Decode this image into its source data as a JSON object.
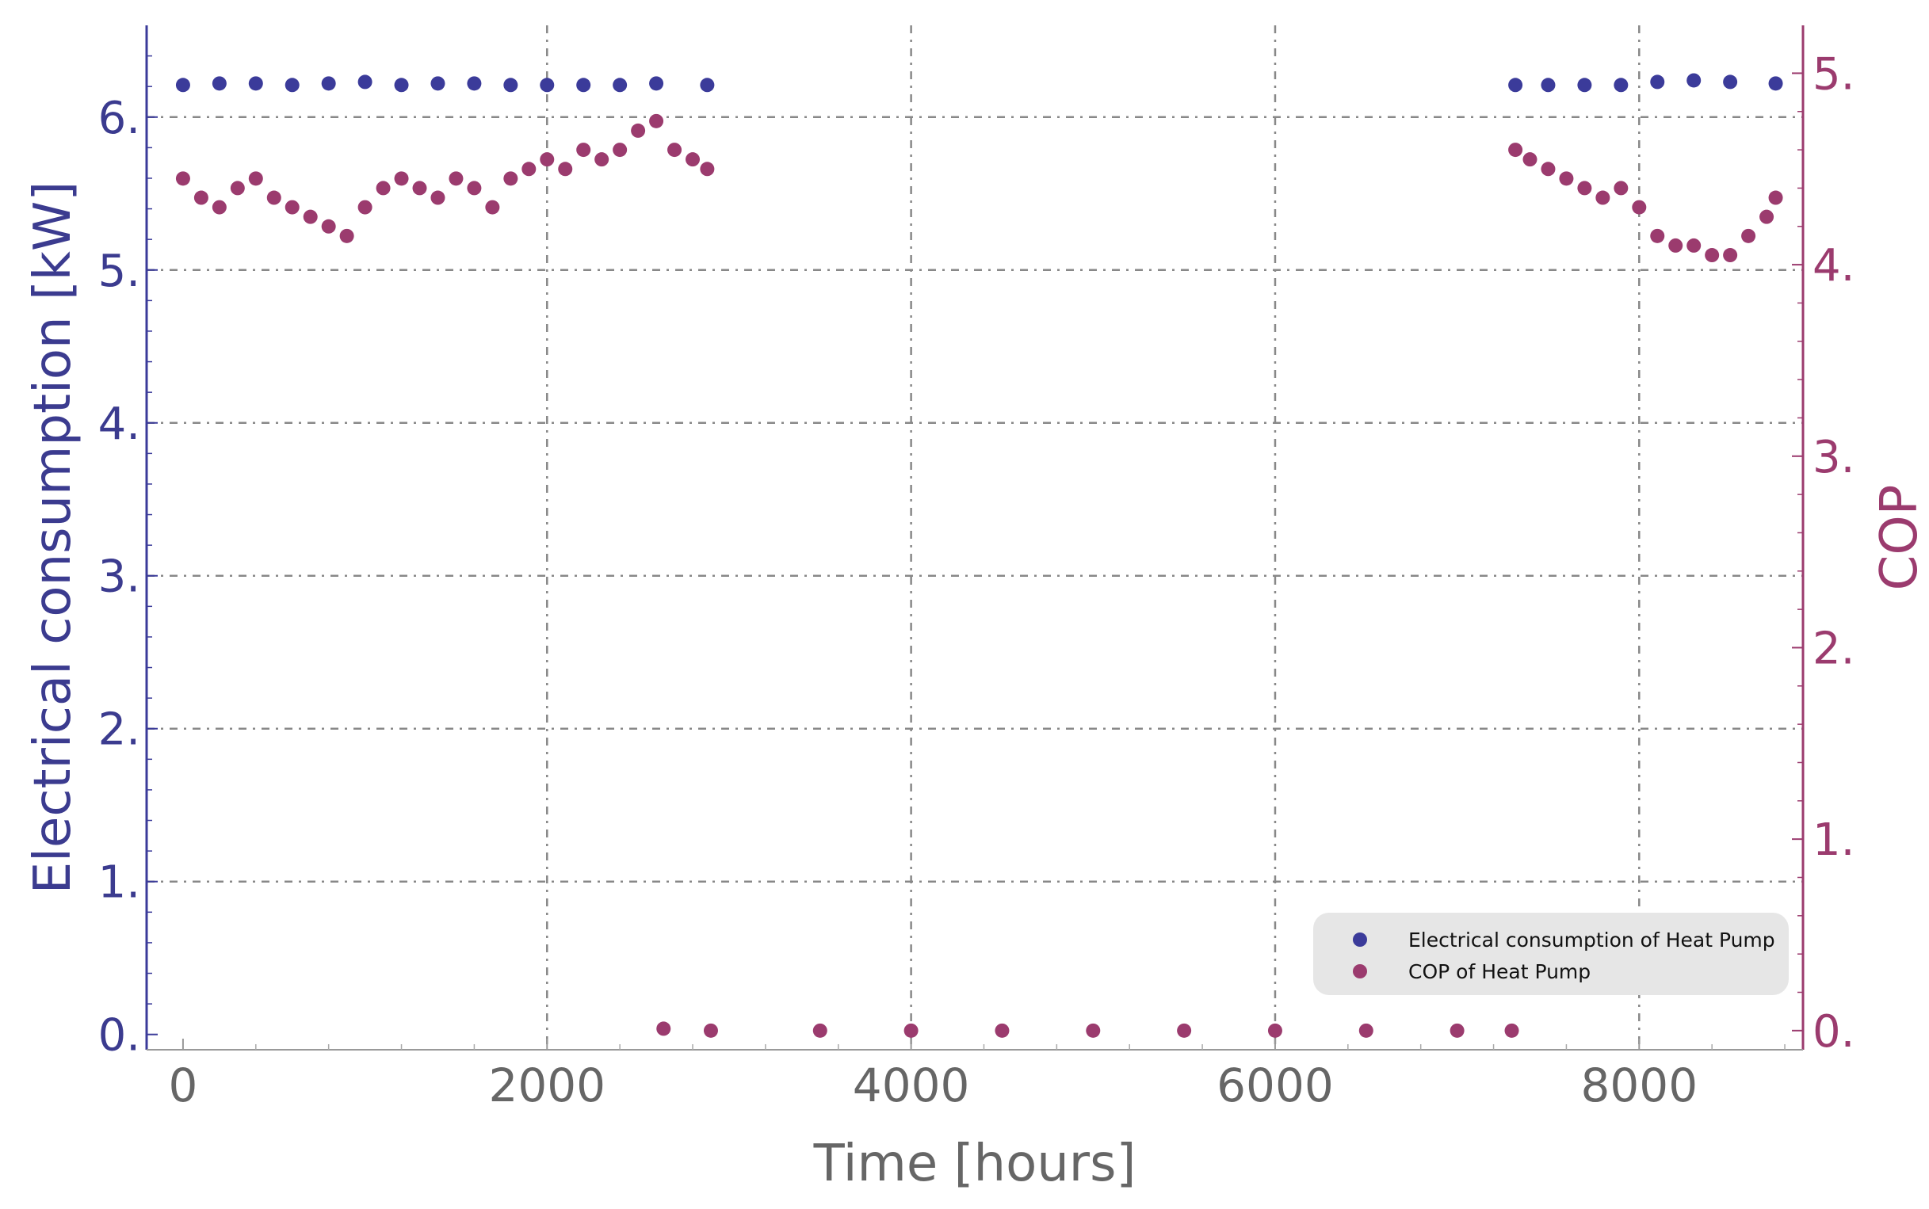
{
  "chart_data": {
    "type": "scatter",
    "title": "",
    "xlabel": "Time [hours]",
    "ylabel_left": "Electrical consumption [kW]",
    "ylabel_right": "COP",
    "xlim": [
      -200,
      8900
    ],
    "ylim_left": [
      -0.1,
      6.6
    ],
    "ylim_right": [
      -0.1,
      5.25
    ],
    "x_ticks": [
      "0",
      "2000",
      "4000",
      "6000",
      "8000"
    ],
    "y_left_ticks": [
      "0.",
      "1.",
      "2.",
      "3.",
      "4.",
      "5.",
      "6."
    ],
    "y_right_ticks": [
      "0.",
      "1.",
      "2.",
      "3.",
      "4.",
      "5."
    ],
    "grid": true,
    "legend_position": "bottom-right",
    "colors": {
      "electrical": "#3b3b9a",
      "cop": "#9b3b6e",
      "axis_text": "#666666",
      "grid": "#888888",
      "legend_bg": "#e6e6e6"
    },
    "series": [
      {
        "name": "Electrical consumption of Heat Pump",
        "axis": "left",
        "color": "#3b3b9a",
        "x": [
          0,
          200,
          400,
          600,
          800,
          1000,
          1200,
          1400,
          1600,
          1800,
          2000,
          2200,
          2400,
          2600,
          2880,
          7320,
          7500,
          7700,
          7900,
          8100,
          8300,
          8500,
          8750
        ],
        "y": [
          6.21,
          6.22,
          6.22,
          6.21,
          6.22,
          6.23,
          6.21,
          6.22,
          6.22,
          6.21,
          6.21,
          6.21,
          6.21,
          6.22,
          6.21,
          6.21,
          6.21,
          6.21,
          6.21,
          6.23,
          6.24,
          6.23,
          6.22
        ]
      },
      {
        "name": "COP of Heat Pump",
        "axis": "right",
        "color": "#9b3b6e",
        "x": [
          0,
          100,
          200,
          300,
          400,
          500,
          600,
          700,
          800,
          900,
          1000,
          1100,
          1200,
          1300,
          1400,
          1500,
          1600,
          1700,
          1800,
          1900,
          2000,
          2100,
          2200,
          2300,
          2400,
          2500,
          2600,
          2700,
          2800,
          2880,
          2640,
          2900,
          3500,
          4000,
          4500,
          5000,
          5500,
          6000,
          6500,
          7000,
          7300,
          7320,
          7400,
          7500,
          7600,
          7700,
          7800,
          7900,
          8000,
          8100,
          8200,
          8300,
          8400,
          8500,
          8600,
          8700,
          8750
        ],
        "y": [
          4.45,
          4.35,
          4.3,
          4.4,
          4.45,
          4.35,
          4.3,
          4.25,
          4.2,
          4.15,
          4.3,
          4.4,
          4.45,
          4.4,
          4.35,
          4.45,
          4.4,
          4.3,
          4.45,
          4.5,
          4.55,
          4.5,
          4.6,
          4.55,
          4.6,
          4.7,
          4.75,
          4.6,
          4.55,
          4.5,
          0.01,
          0.0,
          0.0,
          0.0,
          0.0,
          0.0,
          0.0,
          0.0,
          0.0,
          0.0,
          0.0,
          4.6,
          4.55,
          4.5,
          4.45,
          4.4,
          4.35,
          4.4,
          4.3,
          4.15,
          4.1,
          4.1,
          4.05,
          4.05,
          4.15,
          4.25,
          4.35
        ]
      }
    ]
  }
}
